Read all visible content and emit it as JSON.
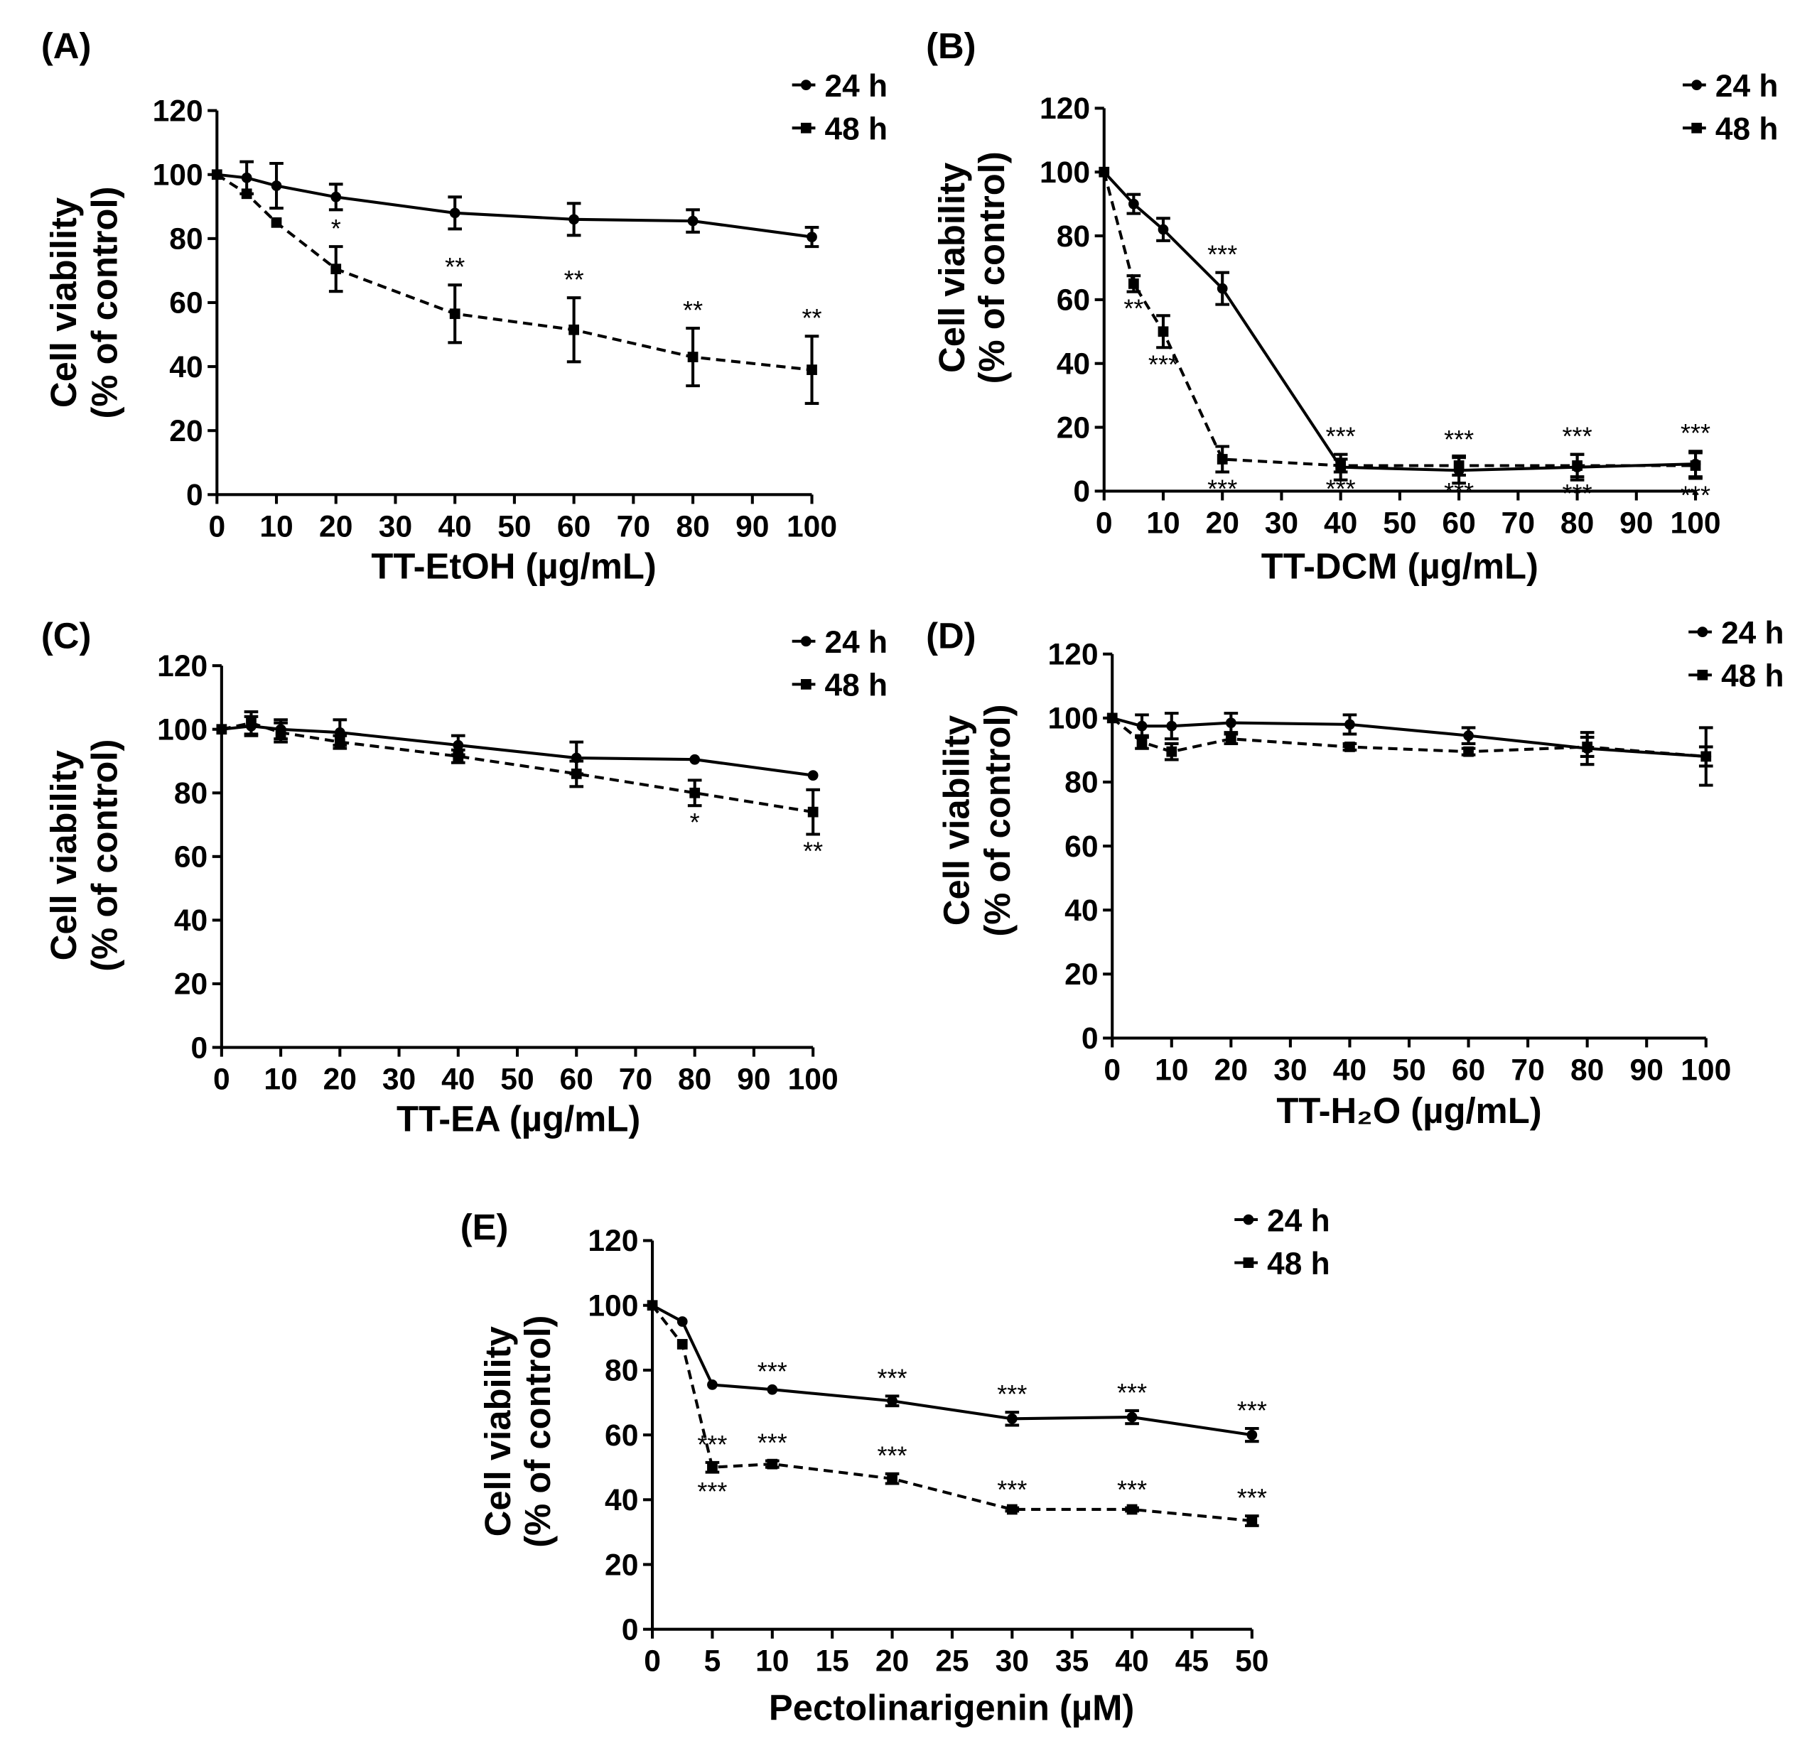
{
  "chart_data": [
    {
      "type": "line",
      "panel_label": "(A)",
      "xlabel": "TT-EtOH (µg/mL)",
      "ylabel": [
        "Cell viability",
        "(% of control)"
      ],
      "xlim": [
        0,
        100
      ],
      "ylim": [
        0,
        120
      ],
      "xticks": [
        0,
        10,
        20,
        30,
        40,
        50,
        60,
        70,
        80,
        90,
        100
      ],
      "yticks": [
        0,
        20,
        40,
        60,
        80,
        100,
        120
      ],
      "legend": "top-right",
      "x": [
        0,
        5,
        10,
        20,
        40,
        60,
        80,
        100
      ],
      "series": [
        {
          "name": "24 h",
          "marker": "circle",
          "dash": false,
          "values": [
            100,
            99,
            96.5,
            93,
            88,
            86,
            85.5,
            80.5
          ],
          "errors": [
            0,
            5,
            7,
            4,
            5,
            5,
            3.5,
            3
          ],
          "stars": [
            "",
            "",
            "",
            "",
            "",
            "",
            "",
            ""
          ],
          "star_pos": "above"
        },
        {
          "name": "48 h",
          "marker": "square",
          "dash": true,
          "values": [
            100,
            94,
            85,
            70.5,
            56.5,
            51.5,
            43,
            39
          ],
          "errors": [
            0,
            0,
            0,
            7,
            9,
            10,
            9,
            10.5
          ],
          "stars": [
            "",
            "",
            "",
            "*",
            "**",
            "**",
            "**",
            "**"
          ],
          "star_pos": "above"
        }
      ]
    },
    {
      "type": "line",
      "panel_label": "(B)",
      "xlabel": "TT-DCM (µg/mL)",
      "ylabel": [
        "Cell viability",
        "(% of control)"
      ],
      "xlim": [
        0,
        100
      ],
      "ylim": [
        0,
        120
      ],
      "xticks": [
        0,
        10,
        20,
        30,
        40,
        50,
        60,
        70,
        80,
        90,
        100
      ],
      "yticks": [
        0,
        20,
        40,
        60,
        80,
        100,
        120
      ],
      "legend": "top-right",
      "x": [
        0,
        5,
        10,
        20,
        40,
        60,
        80,
        100
      ],
      "series": [
        {
          "name": "24 h",
          "marker": "circle",
          "dash": false,
          "values": [
            100,
            90,
            82,
            63.5,
            7.5,
            6.5,
            7.5,
            8.5
          ],
          "errors": [
            0,
            3,
            3.5,
            5,
            4,
            4,
            4,
            4
          ],
          "stars": [
            "",
            "",
            "",
            "***",
            "***",
            "***",
            "***",
            "***"
          ],
          "star_pos": "above"
        },
        {
          "name": "48 h",
          "marker": "square",
          "dash": true,
          "values": [
            100,
            65,
            50,
            10,
            8,
            8,
            8,
            8
          ],
          "errors": [
            0,
            2.5,
            5,
            4,
            2,
            3,
            3.5,
            4
          ],
          "stars": [
            "",
            "**",
            "***",
            "***",
            "***",
            "***",
            "***",
            "***"
          ],
          "star_pos": "below"
        }
      ]
    },
    {
      "type": "line",
      "panel_label": "(C)",
      "xlabel": "TT-EA (µg/mL)",
      "ylabel": [
        "Cell viability",
        "(% of control)"
      ],
      "xlim": [
        0,
        100
      ],
      "ylim": [
        0,
        120
      ],
      "xticks": [
        0,
        10,
        20,
        30,
        40,
        50,
        60,
        70,
        80,
        90,
        100
      ],
      "yticks": [
        0,
        20,
        40,
        60,
        80,
        100,
        120
      ],
      "legend": "top-right",
      "x": [
        0,
        5,
        10,
        20,
        40,
        60,
        80,
        100
      ],
      "series": [
        {
          "name": "24 h",
          "marker": "circle",
          "dash": false,
          "values": [
            100,
            101,
            100,
            99,
            95,
            91,
            90.5,
            85.5
          ],
          "errors": [
            0,
            3,
            3,
            4,
            3,
            5,
            0,
            0
          ],
          "stars": [
            "",
            "",
            "",
            "",
            "",
            "",
            "",
            ""
          ],
          "star_pos": "above"
        },
        {
          "name": "48 h",
          "marker": "square",
          "dash": true,
          "values": [
            100,
            102,
            99,
            96,
            91.5,
            86,
            80,
            74
          ],
          "errors": [
            0,
            3.5,
            3,
            2,
            2,
            4,
            4,
            7
          ],
          "stars": [
            "",
            "",
            "",
            "",
            "",
            "",
            "*",
            "**"
          ],
          "star_pos": "below"
        }
      ]
    },
    {
      "type": "line",
      "panel_label": "(D)",
      "xlabel": "TT-H₂O (µg/mL)",
      "ylabel": [
        "Cell viability",
        "(% of control)"
      ],
      "xlim": [
        0,
        100
      ],
      "ylim": [
        0,
        120
      ],
      "xticks": [
        0,
        10,
        20,
        30,
        40,
        50,
        60,
        70,
        80,
        90,
        100
      ],
      "yticks": [
        0,
        20,
        40,
        60,
        80,
        100,
        120
      ],
      "legend": "top-right",
      "x": [
        0,
        5,
        10,
        20,
        40,
        60,
        80,
        100
      ],
      "series": [
        {
          "name": "24 h",
          "marker": "circle",
          "dash": false,
          "values": [
            100,
            97.5,
            97.5,
            98.5,
            98,
            94.5,
            90.5,
            88
          ],
          "errors": [
            0,
            3.5,
            4,
            3,
            3,
            2.5,
            5,
            9
          ],
          "stars": [
            "",
            "",
            "",
            "",
            "",
            "",
            "",
            ""
          ],
          "star_pos": "above"
        },
        {
          "name": "48 h",
          "marker": "square",
          "dash": true,
          "values": [
            100,
            92.5,
            89.5,
            93.5,
            91,
            89.5,
            91,
            88
          ],
          "errors": [
            0,
            2,
            2.5,
            1.5,
            1,
            1,
            3,
            3
          ],
          "stars": [
            "",
            "",
            "",
            "",
            "",
            "",
            "",
            ""
          ],
          "star_pos": "below"
        }
      ]
    },
    {
      "type": "line",
      "panel_label": "(E)",
      "xlabel": "Pectolinarigenin (µM)",
      "ylabel": [
        "Cell viability",
        "(% of control)"
      ],
      "xlim": [
        0,
        50
      ],
      "ylim": [
        0,
        120
      ],
      "xticks": [
        0,
        5,
        10,
        15,
        20,
        25,
        30,
        35,
        40,
        45,
        50
      ],
      "yticks": [
        0,
        20,
        40,
        60,
        80,
        100,
        120
      ],
      "legend": "top-right",
      "x": [
        0,
        2.5,
        5,
        10,
        20,
        30,
        40,
        50
      ],
      "series": [
        {
          "name": "24 h",
          "marker": "circle",
          "dash": false,
          "values": [
            100,
            95,
            75.5,
            74,
            70.5,
            65,
            65.5,
            60
          ],
          "errors": [
            0,
            0,
            0,
            0,
            1.5,
            2,
            2,
            2
          ],
          "stars": [
            "",
            "",
            "",
            "***",
            "***",
            "***",
            "***",
            "***"
          ],
          "star_pos": "above"
        },
        {
          "name": "48 h",
          "marker": "square",
          "dash": true,
          "values": [
            100,
            88,
            50,
            51,
            46.5,
            37,
            37,
            33.5
          ],
          "errors": [
            0,
            0,
            1.5,
            1,
            1.5,
            0.5,
            0.5,
            1.5
          ],
          "stars": [
            "",
            "",
            "***",
            "***",
            "***",
            "***",
            "***",
            "***"
          ],
          "star_pos": "above"
        }
      ],
      "extra_stars": [
        {
          "series": "48 h",
          "x": 5,
          "text": "***",
          "pos": "below"
        }
      ]
    }
  ]
}
